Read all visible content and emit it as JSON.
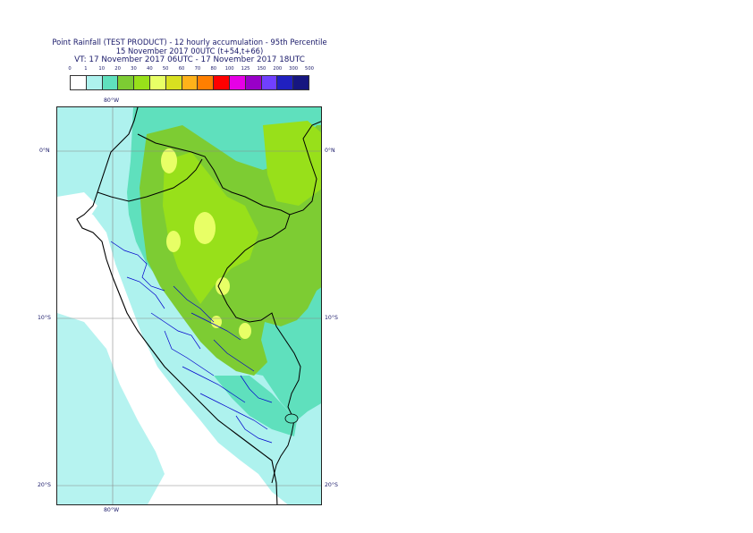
{
  "title": {
    "line1": "Point Rainfall (TEST PRODUCT) - 12 hourly accumulation - 95th Percentile",
    "line2": "15 November 2017 00UTC (t+54,t+66)",
    "line3": "VT: 17 November 2017 06UTC - 17 November 2017 18UTC"
  },
  "colorbar": {
    "ticks": [
      "0",
      "1",
      "10",
      "20",
      "30",
      "40",
      "50",
      "60",
      "70",
      "80",
      "100",
      "125",
      "150",
      "200",
      "300",
      "500"
    ],
    "colors": [
      "#ffffff",
      "#aef2ee",
      "#5fe0bd",
      "#7dcc33",
      "#98e01a",
      "#e8ff66",
      "#d8e020",
      "#ffb21a",
      "#ff7f00",
      "#ff0000",
      "#e600e6",
      "#9900c8",
      "#7040ff",
      "#2020c0",
      "#161680"
    ]
  },
  "map": {
    "land_color": "#9aca3c",
    "ocean_color": "#ffffff",
    "boundary_color": "#000000",
    "admin_boundary_color": "#0000cc"
  },
  "axes": {
    "lon_top": "80°W",
    "lon_bottom": "80°W",
    "lat_left": [
      "0°N",
      "10°S",
      "20°S"
    ],
    "lat_right": [
      "0°N",
      "10°S",
      "20°S"
    ]
  }
}
